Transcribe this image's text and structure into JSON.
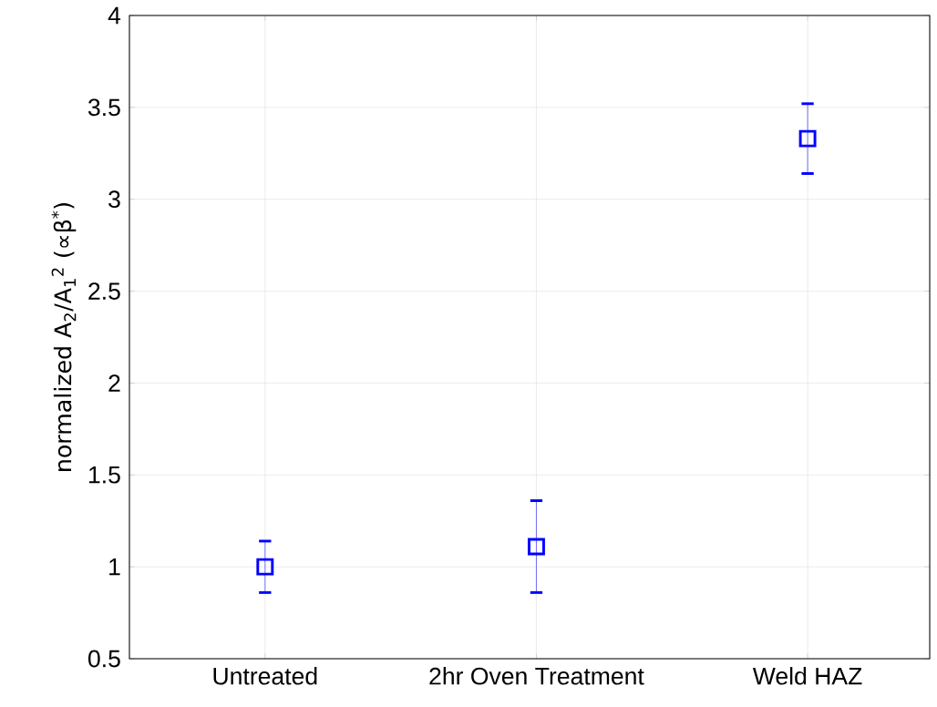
{
  "chart_data": {
    "type": "scatter",
    "ylabel": "normalized A$_{2}$/A$_{1}$$^{2}$ (∝β$^{*}$)",
    "categories": [
      "Untreated",
      "2hr Oven Treatment",
      "Weld HAZ"
    ],
    "series": [
      {
        "color": "#0000ff",
        "values": [
          1.0,
          1.11,
          3.33
        ],
        "errors": [
          0.14,
          0.25,
          0.19
        ]
      }
    ],
    "ylim": [
      0.5,
      4
    ],
    "yticks": [
      0.5,
      1,
      1.5,
      2,
      2.5,
      3,
      3.5,
      4
    ],
    "grid": true,
    "marker": "square"
  }
}
